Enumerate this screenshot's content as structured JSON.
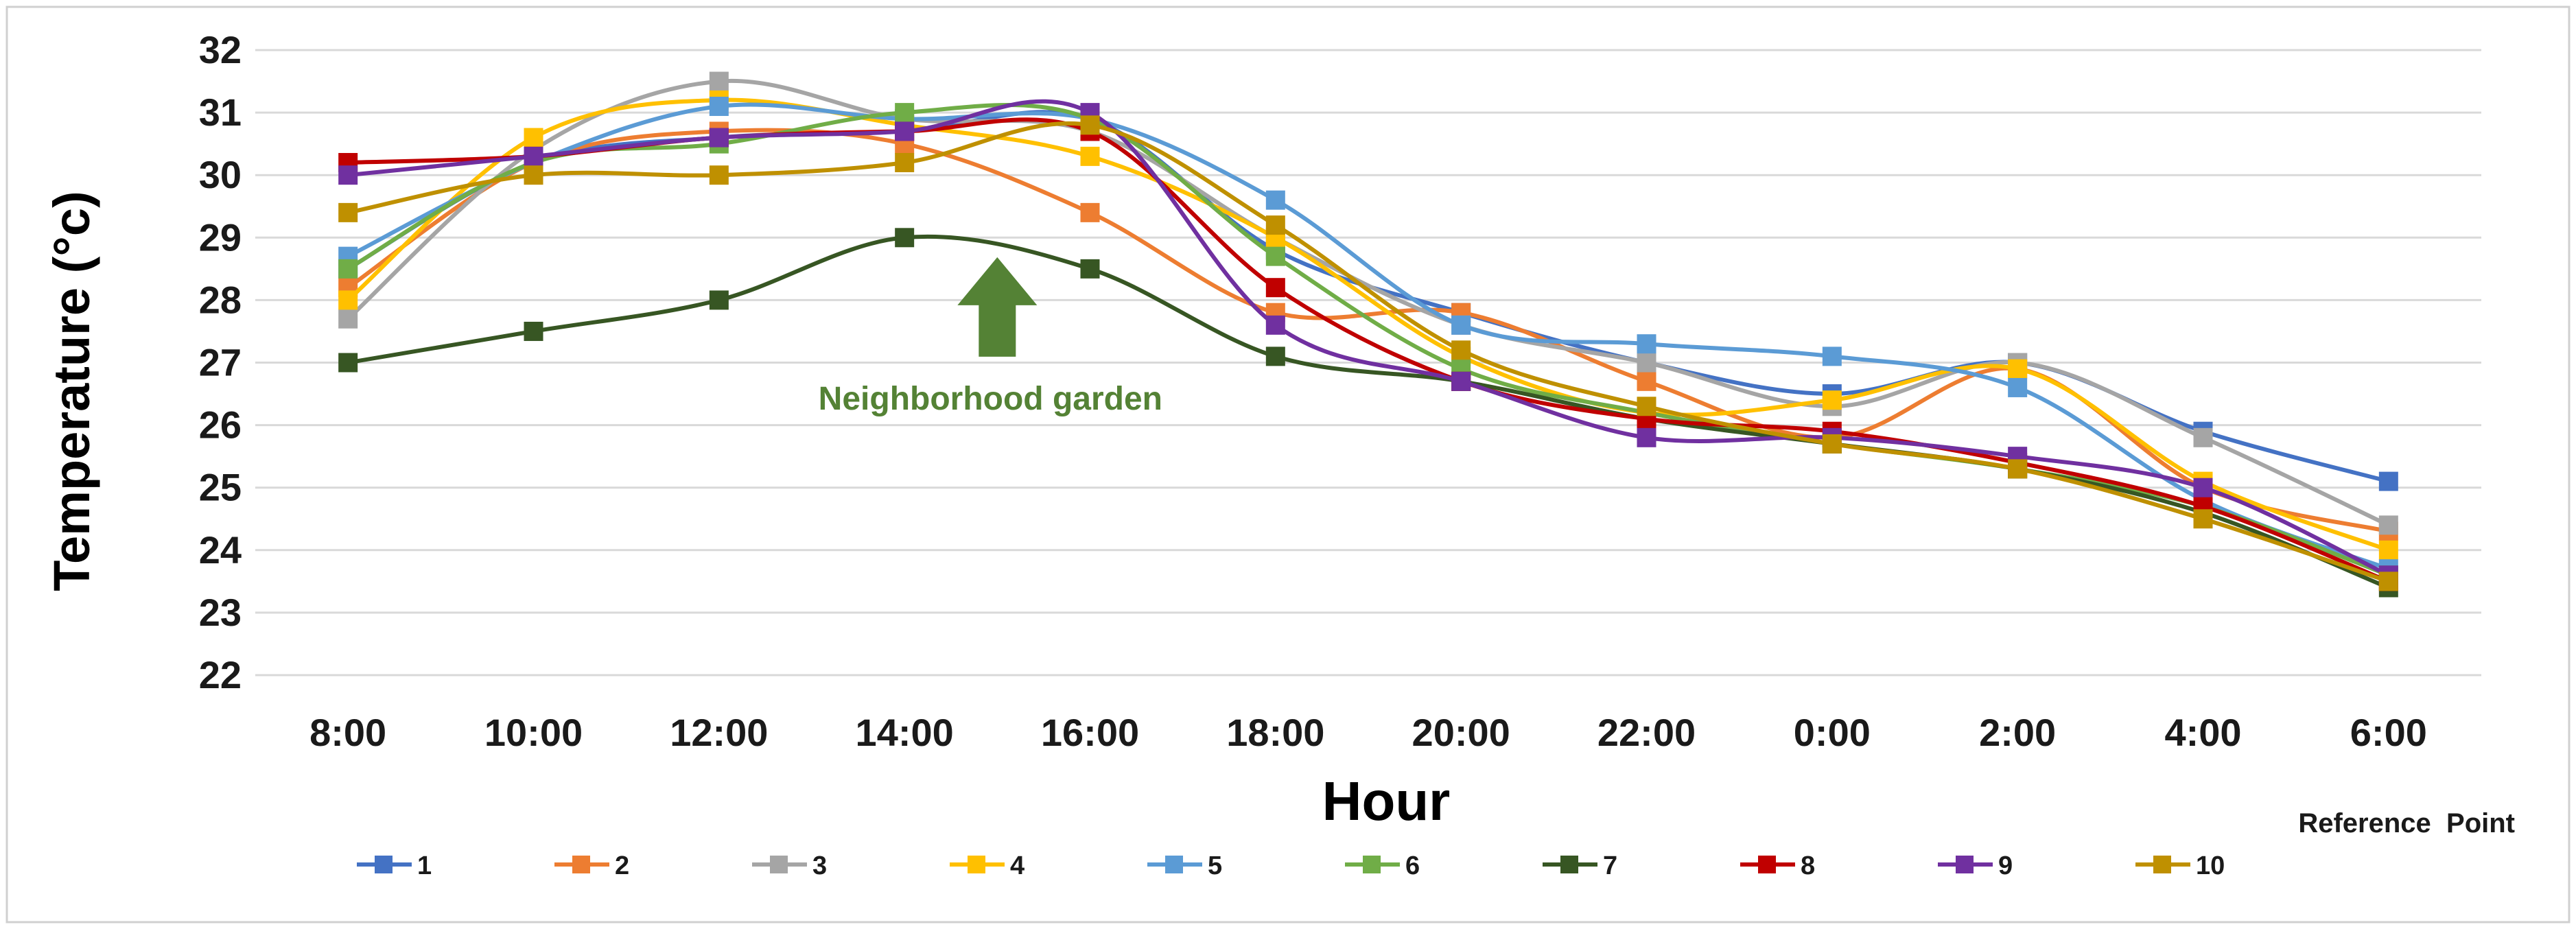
{
  "chart_data": {
    "type": "line",
    "ylabel": "Temperature (°c)",
    "xlabel": "Hour",
    "categories": [
      "8:00",
      "10:00",
      "12:00",
      "14:00",
      "16:00",
      "18:00",
      "20:00",
      "22:00",
      "0:00",
      "2:00",
      "4:00",
      "6:00"
    ],
    "ylim": [
      22,
      32
    ],
    "yticks": [
      22,
      23,
      24,
      25,
      26,
      27,
      28,
      29,
      30,
      31,
      32
    ],
    "grid": true,
    "legend_position": "bottom",
    "reference_note": "Reference  Point",
    "annotation": {
      "text": "Neighborhood garden",
      "color": "#548235",
      "at_x": 15,
      "arrow_tip_y": 28.5
    },
    "series": [
      {
        "name": "1",
        "color": "#4472C4",
        "values": [
          28.5,
          30.2,
          30.6,
          30.7,
          30.9,
          28.8,
          27.8,
          27.0,
          26.5,
          27.0,
          25.9,
          25.1
        ]
      },
      {
        "name": "2",
        "color": "#ED7D31",
        "values": [
          28.2,
          30.2,
          30.7,
          30.5,
          29.4,
          27.8,
          27.8,
          26.7,
          25.8,
          26.9,
          25.0,
          24.3
        ]
      },
      {
        "name": "3",
        "color": "#A5A5A5",
        "values": [
          27.7,
          30.4,
          31.5,
          30.9,
          30.7,
          29.0,
          27.6,
          27.0,
          26.3,
          27.0,
          25.8,
          24.4
        ]
      },
      {
        "name": "4",
        "color": "#FFC000",
        "values": [
          28.0,
          30.6,
          31.2,
          30.8,
          30.3,
          29.0,
          27.1,
          26.2,
          26.4,
          26.9,
          25.1,
          24.0
        ]
      },
      {
        "name": "5",
        "color": "#5B9BD5",
        "values": [
          28.7,
          30.2,
          31.1,
          30.9,
          30.9,
          29.6,
          27.6,
          27.3,
          27.1,
          26.6,
          24.8,
          23.7
        ]
      },
      {
        "name": "6",
        "color": "#70AD47",
        "values": [
          28.5,
          30.2,
          30.5,
          31.0,
          30.9,
          28.7,
          26.9,
          26.2,
          25.7,
          25.3,
          24.7,
          23.6
        ]
      },
      {
        "name": "7",
        "color": "#375623",
        "values": [
          27.0,
          27.5,
          28.0,
          29.0,
          28.5,
          27.1,
          26.7,
          26.1,
          25.7,
          25.3,
          24.6,
          23.4
        ]
      },
      {
        "name": "8",
        "color": "#C00000",
        "values": [
          30.2,
          30.3,
          30.6,
          30.7,
          30.7,
          28.2,
          26.7,
          26.1,
          25.9,
          25.4,
          24.7,
          23.5
        ]
      },
      {
        "name": "9",
        "color": "#7030A0",
        "values": [
          30.0,
          30.3,
          30.6,
          30.7,
          31.0,
          27.6,
          26.7,
          25.8,
          25.8,
          25.5,
          25.0,
          23.6
        ]
      },
      {
        "name": "10",
        "color": "#BF9000",
        "values": [
          29.4,
          30.0,
          30.0,
          30.2,
          30.8,
          29.2,
          27.2,
          26.3,
          25.7,
          25.3,
          24.5,
          23.5
        ]
      }
    ]
  }
}
